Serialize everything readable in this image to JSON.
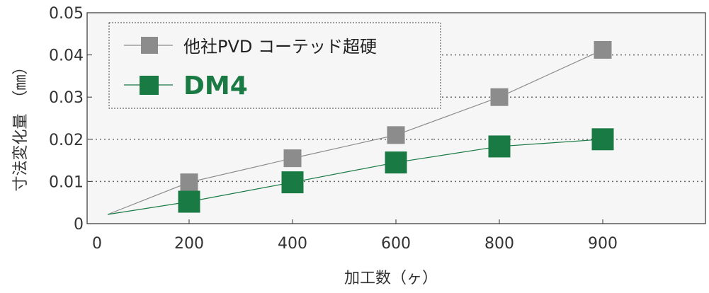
{
  "chart_data": {
    "type": "line",
    "categories": [
      "0",
      "200",
      "400",
      "600",
      "800",
      "900"
    ],
    "xlabel": "加工数（ヶ）",
    "ylabel": "寸法変化量　（㎜）",
    "yticks": [
      "0",
      "0.01",
      "0.02",
      "0.03",
      "0.04",
      "0.05"
    ],
    "ylim": [
      0,
      0.05
    ],
    "grid": "horizontal-dotted",
    "legend_position": "top-left",
    "series": [
      {
        "name": "他社PVD コーテッド超硬",
        "color": "#8c8c8c",
        "line_color": "#8c8c8c",
        "origin": [
          0,
          0
        ],
        "points": [
          [
            200,
            0.0098
          ],
          [
            400,
            0.0155
          ],
          [
            600,
            0.021
          ],
          [
            800,
            0.03
          ],
          [
            900,
            0.0412
          ]
        ]
      },
      {
        "name": "DM4",
        "color": "#1a7a44",
        "line_color": "#1a7a44",
        "origin": [
          0,
          0
        ],
        "points": [
          [
            200,
            0.0052
          ],
          [
            400,
            0.0098
          ],
          [
            600,
            0.0145
          ],
          [
            800,
            0.0183
          ],
          [
            900,
            0.02
          ]
        ]
      }
    ]
  }
}
